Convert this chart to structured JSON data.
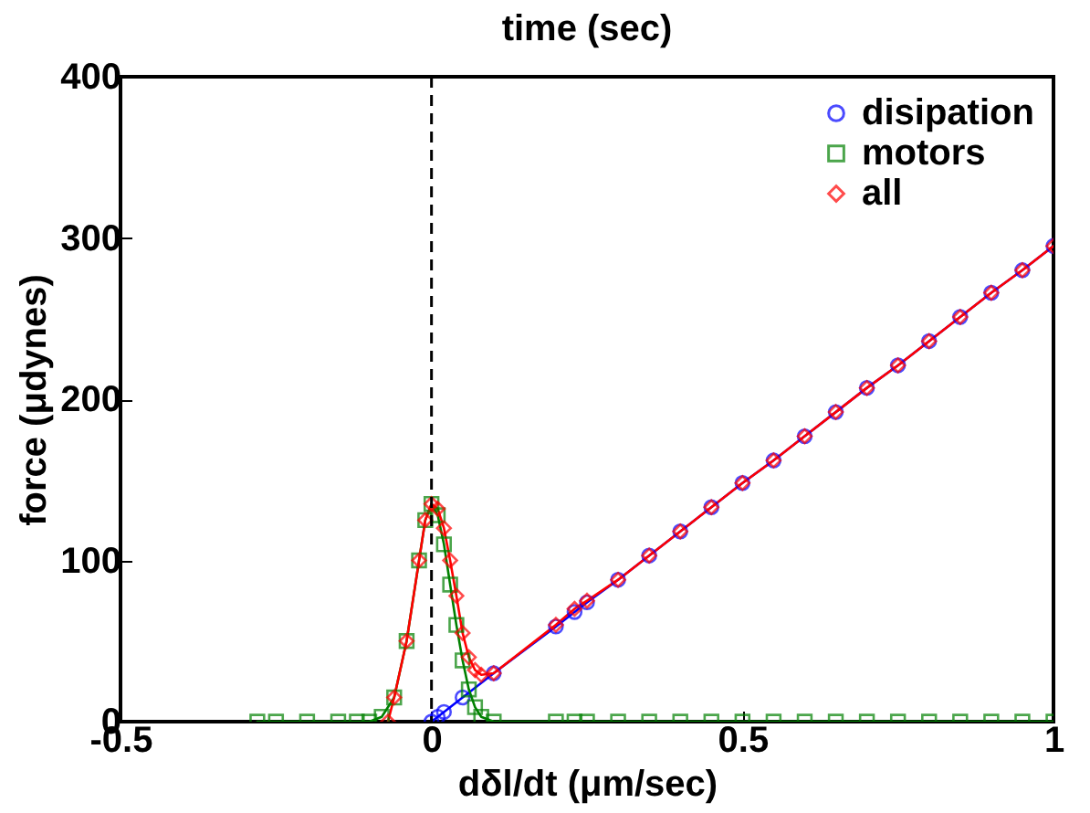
{
  "chart_data": {
    "type": "line",
    "title": "time (sec)",
    "xlabel": "dδl/dt (μm/sec)",
    "ylabel": "force (μdynes)",
    "xlim": [
      -0.5,
      1
    ],
    "ylim": [
      0,
      400
    ],
    "xticks": [
      -0.5,
      0,
      0.5,
      1
    ],
    "yticks": [
      0,
      100,
      200,
      300,
      400
    ],
    "grid": false,
    "legend": "top right",
    "line_style": "solid",
    "ref_lines": [
      {
        "axis": "x",
        "value": 0,
        "color": "#000000",
        "line_style": "dashed"
      }
    ],
    "series": [
      {
        "name": "disipation",
        "color": "#0000ff",
        "marker": "circle",
        "x": [
          0,
          0.01,
          0.02,
          0.05,
          0.1,
          0.2,
          0.23,
          0.25,
          0.3,
          0.35,
          0.4,
          0.45,
          0.5,
          0.55,
          0.6,
          0.65,
          0.7,
          0.75,
          0.8,
          0.85,
          0.9,
          0.95,
          1
        ],
        "values": [
          0,
          3,
          6,
          15,
          30,
          59,
          68,
          74,
          88,
          103,
          118,
          133,
          148,
          162,
          177,
          192,
          207,
          221,
          236,
          251,
          266,
          280,
          295
        ]
      },
      {
        "name": "motors",
        "color": "#008000",
        "marker": "square",
        "x": [
          -0.28,
          -0.25,
          -0.2,
          -0.15,
          -0.12,
          -0.1,
          -0.08,
          -0.06,
          -0.04,
          -0.02,
          -0.01,
          0,
          0.01,
          0.02,
          0.03,
          0.04,
          0.05,
          0.06,
          0.07,
          0.08,
          0.1,
          0.2,
          0.23,
          0.25,
          0.3,
          0.35,
          0.4,
          0.45,
          0.5,
          0.55,
          0.6,
          0.65,
          0.7,
          0.75,
          0.8,
          0.85,
          0.9,
          0.95,
          1
        ],
        "values": [
          0,
          0,
          0,
          0,
          0,
          0,
          3,
          15,
          50,
          100,
          125,
          135,
          128,
          110,
          85,
          60,
          38,
          20,
          9,
          3,
          0,
          0,
          0,
          0,
          0,
          0,
          0,
          0,
          0,
          0,
          0,
          0,
          0,
          0,
          0,
          0,
          0,
          0,
          0
        ]
      },
      {
        "name": "all",
        "color": "#ff0000",
        "marker": "diamond",
        "x": [
          -0.07,
          -0.06,
          -0.04,
          -0.02,
          -0.01,
          0,
          0.01,
          0.02,
          0.03,
          0.04,
          0.05,
          0.06,
          0.07,
          0.08,
          0.1,
          0.2,
          0.23,
          0.25,
          0.3,
          0.35,
          0.4,
          0.45,
          0.5,
          0.55,
          0.6,
          0.65,
          0.7,
          0.75,
          0.8,
          0.85,
          0.9,
          0.95,
          1
        ],
        "values": [
          0,
          15,
          50,
          100,
          125,
          135,
          132,
          120,
          100,
          78,
          55,
          40,
          32,
          29,
          30,
          60,
          70,
          75,
          88,
          103,
          118,
          133,
          148,
          162,
          177,
          192,
          207,
          221,
          236,
          251,
          266,
          280,
          295
        ]
      }
    ]
  }
}
